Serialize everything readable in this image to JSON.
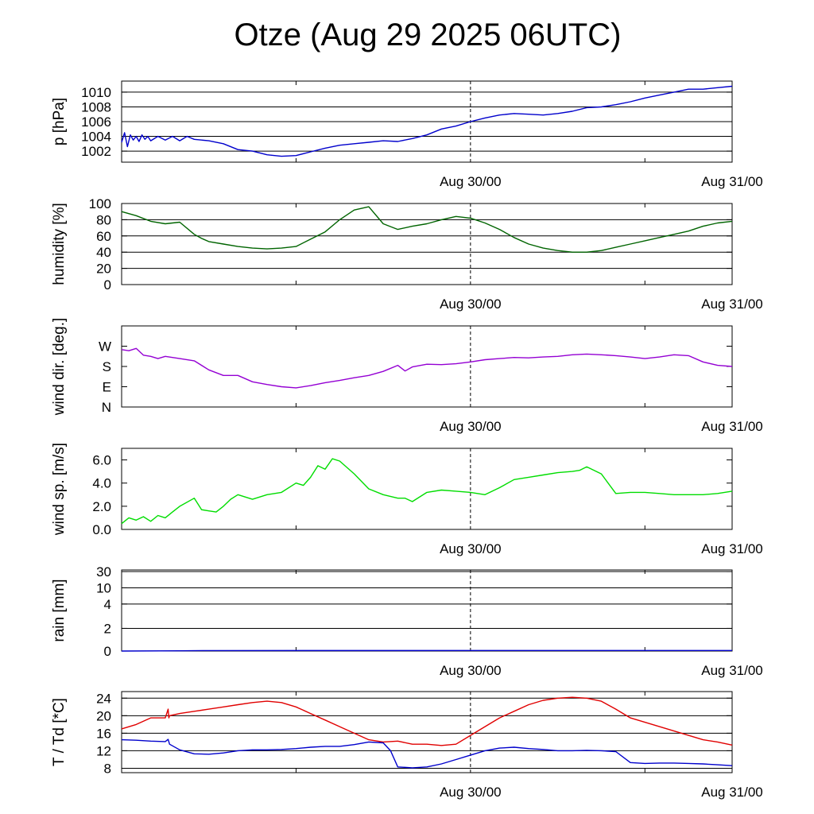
{
  "title": "Otze (Aug 29 2025 06UTC)",
  "colors": {
    "pressure": "#0000cc",
    "humidity": "#006400",
    "wind_dir": "#9400d3",
    "wind_speed": "#00dd00",
    "rain": "#0000cc",
    "temperature": "#e00000",
    "dewpoint": "#0000cc"
  },
  "chart_data": [
    {
      "type": "line",
      "ylabel": "p [hPa]",
      "x_ticks": [
        "Aug 30/00",
        "Aug 31/00"
      ],
      "x_range": [
        6,
        48
      ],
      "ylim": [
        1000.5,
        1011.5
      ],
      "y_ticks": [
        "1002",
        "1004",
        "1006",
        "1008",
        "1010"
      ],
      "grid_lines": [
        1002,
        1004,
        1006,
        1008,
        1010
      ],
      "series": [
        {
          "color_key": "pressure",
          "x": [
            6,
            6.2,
            6.4,
            6.6,
            6.8,
            7,
            7.2,
            7.4,
            7.6,
            7.8,
            8,
            8.5,
            9,
            9.5,
            10,
            10.5,
            11,
            12,
            13,
            14,
            15,
            16,
            17,
            18,
            19,
            20,
            21,
            22,
            23,
            24,
            25,
            26,
            27,
            28,
            29,
            30,
            31,
            32,
            33,
            34,
            35,
            36,
            37,
            38,
            39,
            40,
            41,
            42,
            43,
            44,
            45,
            46,
            47,
            48
          ],
          "y": [
            1003.2,
            1004.5,
            1002.6,
            1004.2,
            1003.5,
            1004.0,
            1003.3,
            1004.2,
            1003.6,
            1004.0,
            1003.4,
            1004.0,
            1003.5,
            1004.0,
            1003.4,
            1004.0,
            1003.6,
            1003.4,
            1003.0,
            1002.2,
            1002.0,
            1001.5,
            1001.3,
            1001.4,
            1001.9,
            1002.4,
            1002.8,
            1003.0,
            1003.2,
            1003.4,
            1003.3,
            1003.7,
            1004.2,
            1005.0,
            1005.4,
            1006.0,
            1006.5,
            1006.9,
            1007.1,
            1007.0,
            1006.9,
            1007.1,
            1007.4,
            1007.9,
            1008.0,
            1008.3,
            1008.7,
            1009.2,
            1009.6,
            1010.0,
            1010.4,
            1010.4,
            1010.6,
            1010.8
          ]
        }
      ]
    },
    {
      "type": "line",
      "ylabel": "humidity [%]",
      "x_ticks": [
        "Aug 30/00",
        "Aug 31/00"
      ],
      "x_range": [
        6,
        48
      ],
      "ylim": [
        0,
        100
      ],
      "y_ticks": [
        "0",
        "20",
        "40",
        "60",
        "80",
        "100"
      ],
      "grid_lines": [
        0,
        20,
        40,
        60,
        80,
        100
      ],
      "series": [
        {
          "color_key": "humidity",
          "x": [
            6,
            7,
            8,
            9,
            10,
            11,
            11.5,
            12,
            13,
            14,
            15,
            16,
            17,
            18,
            19,
            20,
            21,
            22,
            23,
            24,
            25,
            26,
            27,
            28,
            29,
            30,
            31,
            32,
            33,
            34,
            35,
            36,
            37,
            38,
            39,
            40,
            41,
            42,
            43,
            44,
            45,
            46,
            47,
            48
          ],
          "y": [
            90,
            85,
            78,
            75,
            77,
            62,
            57,
            53,
            50,
            47,
            45,
            44,
            45,
            47,
            56,
            65,
            80,
            92,
            96,
            75,
            68,
            72,
            75,
            80,
            84,
            82,
            76,
            68,
            58,
            50,
            45,
            42,
            40,
            40,
            42,
            46,
            50,
            54,
            58,
            62,
            66,
            72,
            76,
            78
          ]
        }
      ]
    },
    {
      "type": "line",
      "ylabel": "wind dir. [deg.]",
      "x_ticks": [
        "Aug 30/00",
        "Aug 31/00"
      ],
      "x_range": [
        6,
        48
      ],
      "ylim": [
        0,
        360
      ],
      "y_ticks": [
        "N",
        "E",
        "S",
        "W"
      ],
      "grid_lines": [],
      "series": [
        {
          "color_key": "wind_dir",
          "x": [
            6,
            6.5,
            7,
            7.5,
            8,
            8.5,
            9,
            10,
            11,
            12,
            13,
            14,
            15,
            16,
            17,
            18,
            19,
            20,
            21,
            22,
            23,
            24,
            25,
            25.5,
            26,
            27,
            28,
            29,
            30,
            31,
            32,
            33,
            34,
            35,
            36,
            37,
            38,
            39,
            40,
            41,
            42,
            43,
            44,
            45,
            46,
            47,
            48
          ],
          "y": [
            255,
            250,
            260,
            230,
            225,
            215,
            225,
            215,
            205,
            165,
            140,
            140,
            112,
            100,
            90,
            85,
            95,
            108,
            118,
            130,
            140,
            158,
            185,
            160,
            178,
            190,
            188,
            192,
            200,
            210,
            215,
            220,
            218,
            222,
            225,
            232,
            235,
            232,
            228,
            222,
            215,
            222,
            232,
            228,
            200,
            185,
            180
          ]
        }
      ]
    },
    {
      "type": "line",
      "ylabel": "wind sp. [m/s]",
      "x_ticks": [
        "Aug 30/00",
        "Aug 31/00"
      ],
      "x_range": [
        6,
        48
      ],
      "ylim": [
        0,
        7
      ],
      "y_ticks": [
        "0.0",
        "2.0",
        "4.0",
        "6.0"
      ],
      "grid_lines": [],
      "series": [
        {
          "color_key": "wind_speed",
          "x": [
            6,
            6.5,
            7,
            7.5,
            8,
            8.5,
            9,
            9.5,
            10,
            11,
            11.5,
            12,
            12.5,
            13,
            13.5,
            14,
            15,
            16,
            17,
            18,
            18.5,
            19,
            19.5,
            20,
            20.5,
            21,
            22,
            23,
            24,
            25,
            25.5,
            26,
            27,
            28,
            29,
            30,
            31,
            32,
            33,
            34,
            35,
            36,
            37,
            37.5,
            38,
            39,
            40,
            41,
            42,
            43,
            44,
            45,
            46,
            47,
            48
          ],
          "y": [
            0.5,
            1.0,
            0.8,
            1.1,
            0.7,
            1.2,
            1.0,
            1.5,
            2.0,
            2.7,
            1.7,
            1.6,
            1.5,
            2.0,
            2.6,
            3.0,
            2.6,
            3.0,
            3.2,
            4.0,
            3.8,
            4.5,
            5.5,
            5.2,
            6.1,
            5.9,
            4.8,
            3.5,
            3.0,
            2.7,
            2.7,
            2.4,
            3.2,
            3.4,
            3.3,
            3.2,
            3.0,
            3.6,
            4.3,
            4.5,
            4.7,
            4.9,
            5.0,
            5.1,
            5.4,
            4.8,
            3.1,
            3.2,
            3.2,
            3.1,
            3.0,
            3.0,
            3.0,
            3.1,
            3.3
          ]
        }
      ]
    },
    {
      "type": "line",
      "ylabel": "rain [mm]",
      "x_ticks": [
        "Aug 30/00",
        "Aug 31/00"
      ],
      "x_range": [
        6,
        48
      ],
      "ylim": [
        0,
        30
      ],
      "y_ticks": [
        "0",
        "2",
        "4",
        "10",
        "30"
      ],
      "grid_lines": [
        0,
        2,
        4,
        10,
        30
      ],
      "series": [
        {
          "color_key": "rain",
          "x": [
            6,
            10,
            12,
            48
          ],
          "y": [
            0,
            0.02,
            0.04,
            0.05
          ]
        }
      ]
    },
    {
      "type": "line",
      "ylabel": "T / Td [*C]",
      "x_ticks": [
        "Aug 30/00",
        "Aug 31/00"
      ],
      "x_range": [
        6,
        48
      ],
      "ylim": [
        7.0,
        25.5
      ],
      "y_ticks": [
        "8",
        "12",
        "16",
        "20",
        "24"
      ],
      "grid_lines": [
        8,
        12,
        16,
        20,
        24
      ],
      "series": [
        {
          "color_key": "temperature",
          "x": [
            6,
            7,
            8,
            9,
            9.2,
            9.25,
            9.3,
            10,
            11,
            12,
            13,
            14,
            15,
            16,
            17,
            18,
            19,
            20,
            21,
            22,
            23,
            24,
            25,
            26,
            27,
            28,
            29,
            30,
            31,
            32,
            33,
            34,
            35,
            36,
            37,
            38,
            39,
            40,
            41,
            42,
            43,
            44,
            45,
            46,
            47,
            48
          ],
          "y": [
            17,
            18,
            19.5,
            19.5,
            21.5,
            19.5,
            20,
            20.5,
            21,
            21.5,
            22,
            22.5,
            23,
            23.3,
            23,
            22,
            20.5,
            19,
            17.5,
            16,
            14.5,
            14,
            14.2,
            13.5,
            13.5,
            13.2,
            13.5,
            15.5,
            17.5,
            19.5,
            21,
            22.5,
            23.5,
            24,
            24.2,
            24,
            23.3,
            21.5,
            19.5,
            18.5,
            17.5,
            16.5,
            15.5,
            14.5,
            14,
            13.3
          ]
        },
        {
          "color_key": "dewpoint",
          "x": [
            6,
            7,
            8,
            9,
            9.2,
            9.3,
            10,
            11,
            12,
            13,
            14,
            15,
            16,
            17,
            18,
            19,
            20,
            21,
            22,
            23,
            24,
            24.5,
            25,
            26,
            27,
            28,
            29,
            30,
            31,
            32,
            33,
            34,
            35,
            36,
            37,
            38,
            39,
            40,
            41,
            42,
            43,
            44,
            45,
            46,
            47,
            48
          ],
          "y": [
            14.5,
            14.4,
            14.2,
            14.1,
            14.6,
            13.5,
            12.2,
            11.3,
            11.2,
            11.5,
            12,
            12.2,
            12.2,
            12.3,
            12.5,
            12.8,
            13,
            13,
            13.4,
            14,
            13.8,
            12,
            8.3,
            8.1,
            8.3,
            9,
            10,
            11,
            12,
            12.6,
            12.8,
            12.5,
            12.3,
            12,
            12,
            12.1,
            12,
            11.8,
            9.3,
            9.1,
            9.2,
            9.2,
            9.1,
            9,
            8.8,
            8.6
          ]
        }
      ]
    }
  ]
}
